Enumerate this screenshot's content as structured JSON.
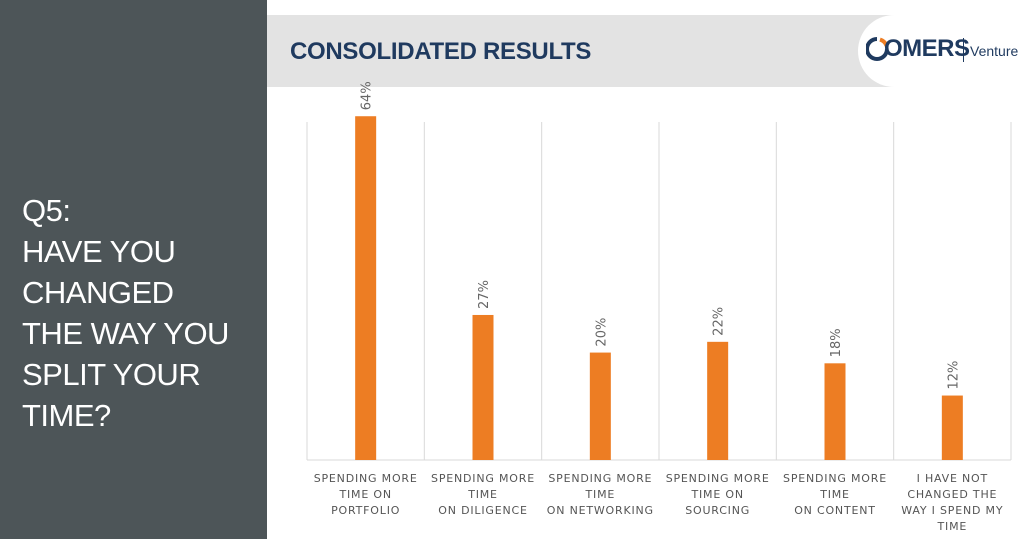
{
  "question": {
    "lines": [
      "Q5:",
      "HAVE YOU",
      "CHANGED",
      "THE WAY YOU",
      "SPLIT YOUR",
      "TIME?"
    ]
  },
  "header": {
    "title": "CONSOLIDATED RESULTS",
    "logo_text": "OMERS",
    "logo_sub": "Venture"
  },
  "colors": {
    "panel": "#4d5558",
    "bar": "#ed7d23",
    "title": "#1f3a5f",
    "logo_accent": "#ed7d23"
  },
  "chart_data": {
    "type": "bar",
    "title": "",
    "xlabel": "",
    "ylabel": "",
    "categories": [
      [
        "SPENDING MORE",
        "TIME ON",
        "PORTFOLIO"
      ],
      [
        "SPENDING MORE",
        "TIME",
        "ON DILIGENCE"
      ],
      [
        "SPENDING MORE",
        "TIME",
        "ON NETWORKING"
      ],
      [
        "SPENDING MORE",
        "TIME ON",
        "SOURCING"
      ],
      [
        "SPENDING MORE",
        "TIME",
        "ON CONTENT"
      ],
      [
        "I HAVE NOT",
        "CHANGED THE",
        "WAY I SPEND MY",
        "TIME"
      ]
    ],
    "values": [
      64,
      27,
      20,
      22,
      18,
      12
    ],
    "data_labels": [
      "64%",
      "27%",
      "20%",
      "22%",
      "18%",
      "12%"
    ],
    "ylim": [
      0,
      70
    ],
    "grid": "vertical separators",
    "legend": "none"
  }
}
